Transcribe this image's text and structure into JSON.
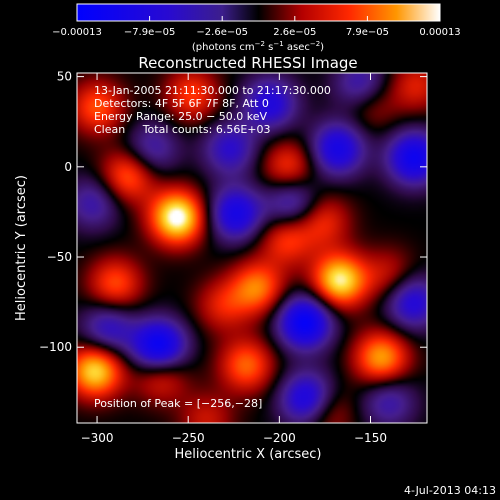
{
  "chart_data": {
    "type": "heatmap",
    "title": "Reconstructed RHESSI Image",
    "xlabel": "Heliocentric X (arcsec)",
    "ylabel": "Heliocentric Y (arcsec)",
    "xlim": [
      -311,
      -119
    ],
    "ylim": [
      -142,
      52
    ],
    "xticks": [
      -300,
      -250,
      -200,
      -150
    ],
    "xtick_labels": [
      "−300",
      "−250",
      "−200",
      "−150"
    ],
    "yticks": [
      50,
      0,
      -50,
      -100
    ],
    "ytick_labels": [
      "50",
      "0",
      "−50",
      "−100"
    ],
    "colorbar": {
      "range": [
        -0.00013,
        0.00013
      ],
      "tick_labels": [
        "−0.00013",
        "−7.9e−05",
        "−2.6e−05",
        "2.6e−05",
        "7.9e−05",
        "0.00013"
      ],
      "unit_prefix": "(photons cm",
      "unit_sup1": "−2",
      "unit_mid": " s",
      "unit_sup2": "−1",
      "unit_suffix": " asec",
      "unit_sup3": "−2",
      "unit_close": ")"
    },
    "annotations": [
      "13-Jan-2005 21:11:30.000 to 21:17:30.000",
      "Detectors: 4F 5F 6F 7F 8F, Att 0",
      "Energy Range: 25.0 − 50.0 keV",
      "Clean     Total counts: 6.56E+03"
    ],
    "peak_label": "Position of Peak = [−256,−28]",
    "blobs": [
      {
        "x": -256,
        "y": -28,
        "v": 1.0
      },
      {
        "x": -301,
        "y": -113,
        "v": 0.85
      },
      {
        "x": -167,
        "y": -63,
        "v": 0.9
      },
      {
        "x": -283,
        "y": -5,
        "v": 0.55
      },
      {
        "x": -300,
        "y": 33,
        "v": 0.5
      },
      {
        "x": -248,
        "y": 40,
        "v": 0.45
      },
      {
        "x": -290,
        "y": -65,
        "v": 0.5
      },
      {
        "x": -212,
        "y": -67,
        "v": 0.6
      },
      {
        "x": -195,
        "y": 0,
        "v": 0.45
      },
      {
        "x": -218,
        "y": -110,
        "v": 0.55
      },
      {
        "x": -144,
        "y": -106,
        "v": 0.7
      },
      {
        "x": -265,
        "y": -115,
        "v": 0.45
      },
      {
        "x": -176,
        "y": -30,
        "v": 0.4
      },
      {
        "x": -196,
        "y": -40,
        "v": 0.45
      },
      {
        "x": -140,
        "y": -60,
        "v": 0.3
      },
      {
        "x": -125,
        "y": 45,
        "v": 0.35
      },
      {
        "x": -150,
        "y": 35,
        "v": 0.3
      },
      {
        "x": -175,
        "y": -135,
        "v": 0.4
      },
      {
        "x": -240,
        "y": -140,
        "v": 0.3
      },
      {
        "x": -231,
        "y": -77,
        "v": 0.35
      },
      {
        "x": -224,
        "y": -26,
        "v": -0.7
      },
      {
        "x": -266,
        "y": -100,
        "v": -0.95
      },
      {
        "x": -186,
        "y": -86,
        "v": -0.9
      },
      {
        "x": -205,
        "y": 35,
        "v": -0.6
      },
      {
        "x": -168,
        "y": 10,
        "v": -0.7
      },
      {
        "x": -126,
        "y": 5,
        "v": -0.8
      },
      {
        "x": -227,
        "y": 10,
        "v": -0.5
      },
      {
        "x": -193,
        "y": -20,
        "v": -0.5
      },
      {
        "x": -294,
        "y": -90,
        "v": -0.5
      },
      {
        "x": -184,
        "y": -129,
        "v": -0.8
      },
      {
        "x": -127,
        "y": -75,
        "v": -0.6
      },
      {
        "x": -302,
        "y": -20,
        "v": -0.4
      },
      {
        "x": -270,
        "y": 10,
        "v": -0.4
      },
      {
        "x": -155,
        "y": 45,
        "v": -0.5
      },
      {
        "x": -140,
        "y": -130,
        "v": -0.4
      }
    ]
  },
  "footer_date": "4-Jul-2013 04:13"
}
